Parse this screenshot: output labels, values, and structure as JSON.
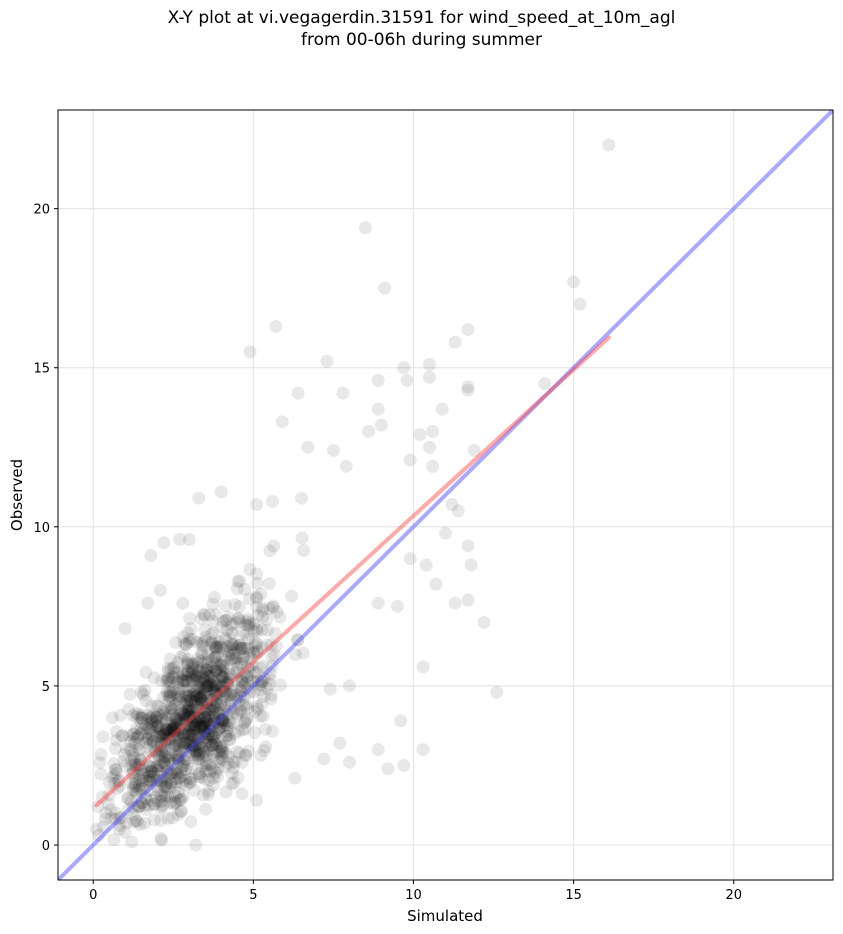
{
  "chart_data": {
    "type": "scatter",
    "title_line1": "X-Y plot at vi.vegagerdin.31591 for wind_speed_at_10m_agl",
    "title_line2": "from 00-06h during summer",
    "xlabel": "Simulated",
    "ylabel": "Observed",
    "xlim": [
      -1.1,
      23.1
    ],
    "ylim": [
      -1.1,
      23.1
    ],
    "xticks": [
      0,
      5,
      10,
      15,
      20
    ],
    "yticks": [
      0,
      5,
      10,
      15,
      20
    ],
    "grid": true,
    "colors": {
      "points": "#000000",
      "identity_line": "#4040ff",
      "fit_line": "#ff4040"
    },
    "identity_line": {
      "x": [
        -1.1,
        23.1
      ],
      "y": [
        -1.1,
        23.1
      ]
    },
    "fit_line": {
      "x": [
        0.1,
        16.1
      ],
      "y": [
        1.25,
        15.95
      ]
    },
    "notable_points": [
      {
        "x": 16.1,
        "y": 22.0
      },
      {
        "x": 8.5,
        "y": 19.4
      },
      {
        "x": 15.0,
        "y": 17.7
      },
      {
        "x": 15.2,
        "y": 17.0
      },
      {
        "x": 9.1,
        "y": 17.5
      },
      {
        "x": 5.7,
        "y": 16.3
      },
      {
        "x": 11.7,
        "y": 16.2
      },
      {
        "x": 4.9,
        "y": 15.5
      },
      {
        "x": 7.3,
        "y": 15.2
      },
      {
        "x": 11.3,
        "y": 15.8
      },
      {
        "x": 10.5,
        "y": 15.1
      },
      {
        "x": 9.7,
        "y": 15.0
      },
      {
        "x": 11.7,
        "y": 14.4
      },
      {
        "x": 11.7,
        "y": 14.3
      },
      {
        "x": 14.1,
        "y": 14.5
      },
      {
        "x": 6.4,
        "y": 14.2
      },
      {
        "x": 7.8,
        "y": 14.2
      },
      {
        "x": 8.9,
        "y": 14.6
      },
      {
        "x": 9.8,
        "y": 14.6
      },
      {
        "x": 10.5,
        "y": 14.7
      },
      {
        "x": 10.9,
        "y": 13.7
      },
      {
        "x": 8.9,
        "y": 13.7
      },
      {
        "x": 5.9,
        "y": 13.3
      },
      {
        "x": 8.6,
        "y": 13.0
      },
      {
        "x": 9.0,
        "y": 13.2
      },
      {
        "x": 10.6,
        "y": 13.0
      },
      {
        "x": 10.2,
        "y": 12.9
      },
      {
        "x": 10.5,
        "y": 12.5
      },
      {
        "x": 11.9,
        "y": 12.4
      },
      {
        "x": 7.5,
        "y": 12.4
      },
      {
        "x": 6.7,
        "y": 12.5
      },
      {
        "x": 9.9,
        "y": 12.1
      },
      {
        "x": 10.6,
        "y": 11.9
      },
      {
        "x": 7.9,
        "y": 11.9
      },
      {
        "x": 4.0,
        "y": 11.1
      },
      {
        "x": 3.3,
        "y": 10.9
      },
      {
        "x": 11.2,
        "y": 10.7
      },
      {
        "x": 11.4,
        "y": 10.5
      },
      {
        "x": 11.0,
        "y": 9.8
      },
      {
        "x": 11.7,
        "y": 9.4
      },
      {
        "x": 11.8,
        "y": 8.8
      },
      {
        "x": 10.4,
        "y": 8.8
      },
      {
        "x": 10.7,
        "y": 8.2
      },
      {
        "x": 11.3,
        "y": 7.6
      },
      {
        "x": 11.7,
        "y": 7.7
      },
      {
        "x": 12.2,
        "y": 7.0
      },
      {
        "x": 12.6,
        "y": 4.8
      },
      {
        "x": 10.3,
        "y": 5.6
      },
      {
        "x": 9.6,
        "y": 3.9
      },
      {
        "x": 10.3,
        "y": 3.0
      },
      {
        "x": 8.9,
        "y": 3.0
      },
      {
        "x": 9.7,
        "y": 2.5
      },
      {
        "x": 9.2,
        "y": 2.4
      },
      {
        "x": 8.0,
        "y": 2.6
      },
      {
        "x": 7.7,
        "y": 3.2
      },
      {
        "x": 7.2,
        "y": 2.7
      },
      {
        "x": 6.3,
        "y": 2.1
      },
      {
        "x": 3.2,
        "y": 0.0
      },
      {
        "x": 1.2,
        "y": 0.1
      },
      {
        "x": 0.1,
        "y": 0.5
      },
      {
        "x": 0.3,
        "y": 3.4
      },
      {
        "x": 0.6,
        "y": 4.0
      },
      {
        "x": 1.0,
        "y": 6.8
      },
      {
        "x": 1.8,
        "y": 9.1
      },
      {
        "x": 2.2,
        "y": 9.5
      },
      {
        "x": 2.7,
        "y": 9.6
      },
      {
        "x": 3.0,
        "y": 9.6
      },
      {
        "x": 1.7,
        "y": 7.6
      },
      {
        "x": 2.1,
        "y": 8.0
      },
      {
        "x": 5.1,
        "y": 10.7
      },
      {
        "x": 5.6,
        "y": 10.8
      },
      {
        "x": 6.5,
        "y": 10.9
      },
      {
        "x": 9.9,
        "y": 9.0
      },
      {
        "x": 9.5,
        "y": 7.5
      },
      {
        "x": 8.9,
        "y": 7.6
      },
      {
        "x": 8.0,
        "y": 5.0
      },
      {
        "x": 7.4,
        "y": 4.9
      }
    ],
    "cloud": {
      "n_points": 1150,
      "x_range": [
        0.0,
        9.5
      ],
      "mean_offset_y": 1.2,
      "description_only_for_generation": false
    }
  }
}
